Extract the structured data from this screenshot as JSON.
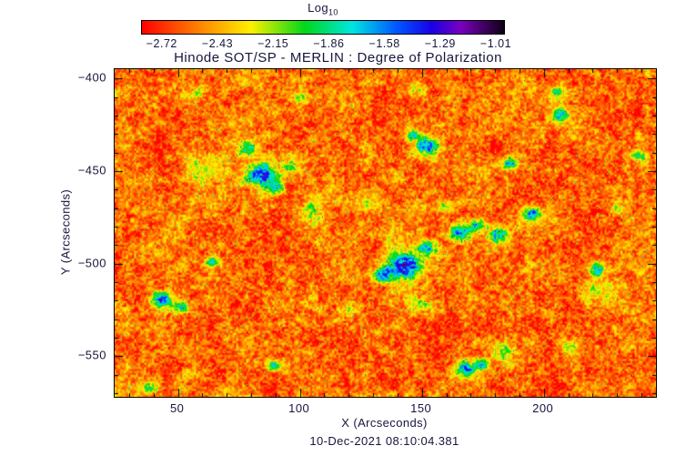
{
  "figure": {
    "background": "#ffffff",
    "text_color": "#16163c"
  },
  "chart_data": {
    "type": "heatmap",
    "title": "Hinode SOT/SP - MERLIN : Degree of Polarization",
    "xlabel": "X (Arcseconds)",
    "ylabel": "Y (Arcseconds)",
    "caption": "10-Dec-2021 08:10:04.381",
    "x_range": [
      24,
      246
    ],
    "y_range": [
      -572,
      -395
    ],
    "x_ticks": [
      50,
      100,
      150,
      200
    ],
    "x_tick_labels": [
      "50",
      "100",
      "150",
      "200"
    ],
    "y_ticks": [
      -400,
      -450,
      -500,
      -550
    ],
    "y_tick_labels": [
      "−400",
      "−450",
      "−500",
      "−550"
    ],
    "x_minor_step": 10,
    "y_minor_step": 10,
    "colorbar": {
      "label": "Log",
      "label_sub": "10",
      "min": -2.72,
      "max": -1.01,
      "tick_labels": [
        "−2.72",
        "−2.43",
        "−2.15",
        "−1.86",
        "−1.58",
        "−1.29",
        "−1.01"
      ],
      "colormap": [
        [
          0.0,
          255,
          0,
          0
        ],
        [
          0.17,
          255,
          140,
          0
        ],
        [
          0.3,
          255,
          240,
          0
        ],
        [
          0.45,
          0,
          215,
          25
        ],
        [
          0.58,
          0,
          230,
          225
        ],
        [
          0.7,
          0,
          90,
          255
        ],
        [
          0.8,
          25,
          0,
          230
        ],
        [
          0.88,
          120,
          0,
          190
        ],
        [
          1.0,
          15,
          0,
          20
        ]
      ]
    },
    "field": {
      "seed": 7,
      "base_level": -2.49,
      "noise_span": 0.55,
      "speckle_threshold": 0.982,
      "speckle_boost": 0.45,
      "noise_octaves": [
        {
          "scale": 2.2,
          "amp": 0.5
        },
        {
          "scale": 5,
          "amp": 0.3
        },
        {
          "scale": 12,
          "amp": 0.25
        },
        {
          "scale": 28,
          "amp": 0.2
        }
      ],
      "blobs": [
        {
          "x": 84,
          "y": -452,
          "r": 6,
          "p": 0.62
        },
        {
          "x": 79,
          "y": -437,
          "r": 3.5,
          "p": 0.45
        },
        {
          "x": 90,
          "y": -459,
          "r": 3.5,
          "p": 0.4
        },
        {
          "x": 152,
          "y": -436,
          "r": 5,
          "p": 0.6
        },
        {
          "x": 146,
          "y": -430,
          "r": 3,
          "p": 0.4
        },
        {
          "x": 186,
          "y": -446,
          "r": 3.5,
          "p": 0.48
        },
        {
          "x": 143,
          "y": -501,
          "r": 7,
          "p": 0.66
        },
        {
          "x": 134,
          "y": -506,
          "r": 4,
          "p": 0.5
        },
        {
          "x": 152,
          "y": -491,
          "r": 4,
          "p": 0.5
        },
        {
          "x": 166,
          "y": -483,
          "r": 4.5,
          "p": 0.55
        },
        {
          "x": 173,
          "y": -479,
          "r": 3.5,
          "p": 0.48
        },
        {
          "x": 181,
          "y": -484,
          "r": 4,
          "p": 0.5
        },
        {
          "x": 195,
          "y": -473,
          "r": 3.5,
          "p": 0.5
        },
        {
          "x": 43,
          "y": -519,
          "r": 4.5,
          "p": 0.55
        },
        {
          "x": 51,
          "y": -523,
          "r": 3.5,
          "p": 0.45
        },
        {
          "x": 168,
          "y": -557,
          "r": 4.5,
          "p": 0.55
        },
        {
          "x": 174,
          "y": -554,
          "r": 3,
          "p": 0.42
        },
        {
          "x": 206,
          "y": -420,
          "r": 3.5,
          "p": 0.45
        },
        {
          "x": 64,
          "y": -499,
          "r": 2.8,
          "p": 0.4
        },
        {
          "x": 222,
          "y": -503,
          "r": 3.5,
          "p": 0.42
        },
        {
          "x": 89,
          "y": -555,
          "r": 2.8,
          "p": 0.38
        },
        {
          "x": 239,
          "y": -442,
          "r": 3,
          "p": 0.4
        },
        {
          "x": 205,
          "y": -407,
          "r": 2.8,
          "p": 0.38
        },
        {
          "x": 60,
          "y": -450,
          "r": 8,
          "p": 0.18
        },
        {
          "x": 104,
          "y": -472,
          "r": 6,
          "p": 0.16
        },
        {
          "x": 96,
          "y": -447,
          "r": 5,
          "p": 0.26
        },
        {
          "x": 128,
          "y": -466,
          "r": 5,
          "p": 0.14
        },
        {
          "x": 221,
          "y": -514,
          "r": 6,
          "p": 0.2
        },
        {
          "x": 150,
          "y": -522,
          "r": 5,
          "p": 0.2
        },
        {
          "x": 120,
          "y": -524,
          "r": 4,
          "p": 0.18
        },
        {
          "x": 38,
          "y": -567,
          "r": 3.5,
          "p": 0.28
        },
        {
          "x": 160,
          "y": -469,
          "r": 4,
          "p": 0.24
        },
        {
          "x": 230,
          "y": -470,
          "r": 4,
          "p": 0.2
        },
        {
          "x": 57,
          "y": -407,
          "r": 3.5,
          "p": 0.24
        },
        {
          "x": 148,
          "y": -406,
          "r": 4,
          "p": 0.2
        },
        {
          "x": 100,
          "y": -410,
          "r": 3.5,
          "p": 0.2
        },
        {
          "x": 210,
          "y": -545,
          "r": 4,
          "p": 0.24
        },
        {
          "x": 184,
          "y": -548,
          "r": 4,
          "p": 0.28
        }
      ]
    }
  }
}
